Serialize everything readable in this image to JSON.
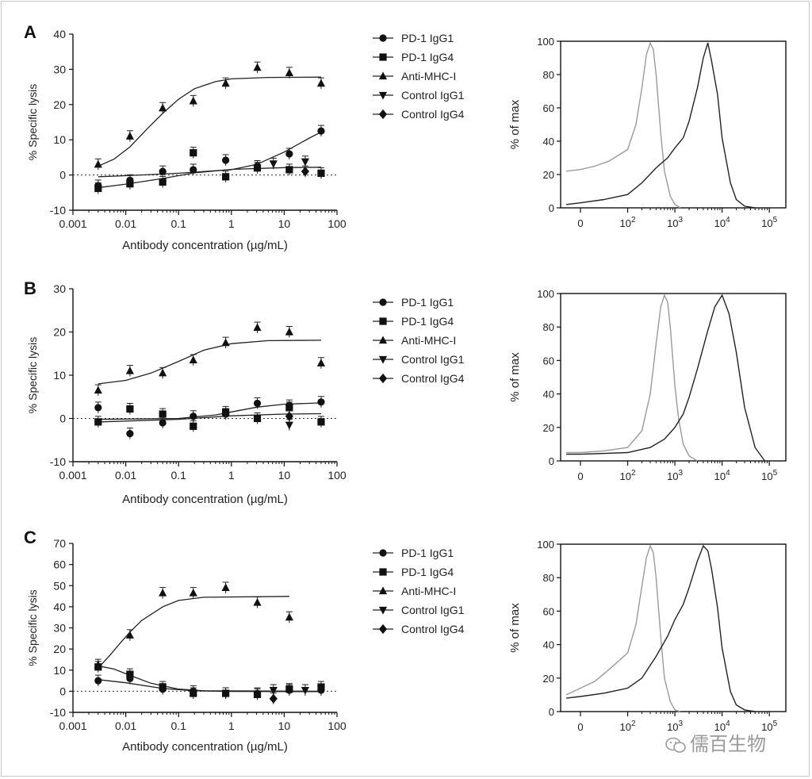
{
  "watermark": "儒百生物",
  "legend_items": [
    "PD-1 IgG1",
    "PD-1 IgG4",
    "Anti-MHC-I",
    "Control IgG1",
    "Control IgG4"
  ],
  "chart_data": [
    {
      "panel": "A",
      "type": "scatter",
      "xlabel": "Antibody concentration (µg/mL)",
      "ylabel": "% Specific lysis",
      "x_scale": "log",
      "xlim": [
        0.001,
        100
      ],
      "ylim": [
        -10,
        40
      ],
      "xticks": [
        "0.001",
        "0.01",
        "0.1",
        "1",
        "10",
        "100"
      ],
      "yticks": [
        "-10",
        "0",
        "10",
        "20",
        "30",
        "40"
      ],
      "grid": false,
      "zero_reference": "dotted line at y=0",
      "legend_position": "right",
      "series": [
        {
          "name": "PD-1 IgG1",
          "marker": "circle",
          "x": [
            0.003,
            0.012,
            0.05,
            0.19,
            0.78,
            3.1,
            12.5,
            50
          ],
          "y": [
            -3,
            -1.5,
            1,
            1.5,
            4.2,
            2.5,
            6,
            12.5
          ],
          "fit": [
            [
              0.003,
              -0.5
            ],
            [
              0.01,
              -0.2
            ],
            [
              0.1,
              0.5
            ],
            [
              1,
              1.5
            ],
            [
              3,
              3
            ],
            [
              10,
              6.5
            ],
            [
              30,
              10.5
            ],
            [
              50,
              12.2
            ]
          ]
        },
        {
          "name": "PD-1 IgG4",
          "marker": "square",
          "x": [
            0.003,
            0.012,
            0.05,
            0.19,
            0.78,
            3.1,
            12.5,
            50
          ],
          "y": [
            -3.8,
            -2.5,
            -2,
            6.3,
            -0.5,
            2,
            1.5,
            0.5
          ],
          "fit": [
            [
              0.003,
              -3.6
            ],
            [
              0.01,
              -2.6
            ],
            [
              0.05,
              -1
            ],
            [
              0.2,
              0.6
            ],
            [
              1,
              1.6
            ],
            [
              10,
              2.1
            ],
            [
              50,
              2.2
            ]
          ]
        },
        {
          "name": "Anti-MHC-I",
          "marker": "triangle-up",
          "x": [
            0.003,
            0.012,
            0.05,
            0.19,
            0.78,
            3.1,
            12.5,
            50
          ],
          "y": [
            3,
            11,
            19,
            21,
            26,
            30.5,
            29,
            26
          ],
          "fit": [
            [
              0.003,
              2.5
            ],
            [
              0.006,
              4.5
            ],
            [
              0.012,
              8
            ],
            [
              0.025,
              13
            ],
            [
              0.05,
              17.5
            ],
            [
              0.1,
              21.5
            ],
            [
              0.2,
              24.5
            ],
            [
              0.5,
              26.5
            ],
            [
              1,
              27.3
            ],
            [
              5,
              27.7
            ],
            [
              50,
              27.8
            ]
          ]
        },
        {
          "name": "Control IgG1",
          "marker": "triangle-down",
          "x": [
            6.25,
            25
          ],
          "y": [
            3.2,
            3.8
          ]
        },
        {
          "name": "Control IgG4",
          "marker": "diamond",
          "x": [
            25
          ],
          "y": [
            1
          ]
        }
      ]
    },
    {
      "panel": "B",
      "type": "scatter",
      "xlabel": "Antibody concentration (µg/mL)",
      "ylabel": "% Specific lysis",
      "x_scale": "log",
      "xlim": [
        0.001,
        100
      ],
      "ylim": [
        -10,
        30
      ],
      "xticks": [
        "0.001",
        "0.01",
        "0.1",
        "1",
        "10",
        "100"
      ],
      "yticks": [
        "-10",
        "0",
        "10",
        "20",
        "30"
      ],
      "grid": false,
      "zero_reference": "dotted line at y=0",
      "legend_position": "right",
      "series": [
        {
          "name": "PD-1 IgG1",
          "marker": "circle",
          "x": [
            0.003,
            0.012,
            0.05,
            0.19,
            0.78,
            3.1,
            12.5,
            50
          ],
          "y": [
            2.5,
            -3.5,
            -1,
            0.5,
            1,
            3.5,
            3,
            3.8
          ],
          "fit": [
            [
              0.003,
              -0.2
            ],
            [
              0.1,
              0
            ],
            [
              0.5,
              0.8
            ],
            [
              1,
              1.5
            ],
            [
              3,
              2.6
            ],
            [
              10,
              3.3
            ],
            [
              50,
              3.6
            ]
          ]
        },
        {
          "name": "PD-1 IgG4",
          "marker": "square",
          "x": [
            0.003,
            0.012,
            0.05,
            0.19,
            0.78,
            3.1,
            12.5,
            50
          ],
          "y": [
            -0.8,
            2.2,
            1,
            -1.8,
            1.5,
            0,
            2.5,
            -0.8
          ],
          "fit": [
            [
              0.003,
              -0.8
            ],
            [
              0.1,
              -0.2
            ],
            [
              1,
              0.6
            ],
            [
              10,
              1
            ],
            [
              50,
              1.1
            ]
          ]
        },
        {
          "name": "Anti-MHC-I",
          "marker": "triangle-up",
          "x": [
            0.003,
            0.012,
            0.05,
            0.19,
            0.78,
            3.1,
            12.5,
            50
          ],
          "y": [
            6.5,
            11,
            10.5,
            13.5,
            17.5,
            21,
            20,
            12.8
          ],
          "fit": [
            [
              0.003,
              8
            ],
            [
              0.01,
              8.8
            ],
            [
              0.03,
              10.5
            ],
            [
              0.1,
              13.2
            ],
            [
              0.3,
              15.8
            ],
            [
              1,
              17.3
            ],
            [
              5,
              18
            ],
            [
              50,
              18.1
            ]
          ]
        },
        {
          "name": "Control IgG1",
          "marker": "triangle-down",
          "x": [
            12.5
          ],
          "y": [
            -1.5
          ]
        },
        {
          "name": "Control IgG4",
          "marker": "diamond",
          "x": [
            12.5
          ],
          "y": [
            0.5
          ]
        }
      ]
    },
    {
      "panel": "C",
      "type": "scatter",
      "xlabel": "Antibody concentration (µg/mL)",
      "ylabel": "% Specific lysis",
      "x_scale": "log",
      "xlim": [
        0.001,
        100
      ],
      "ylim": [
        -10,
        70
      ],
      "xticks": [
        "0.001",
        "0.01",
        "0.1",
        "1",
        "10",
        "100"
      ],
      "yticks": [
        "-10",
        "0",
        "10",
        "20",
        "30",
        "40",
        "50",
        "60",
        "70"
      ],
      "grid": false,
      "zero_reference": "dotted line at y=0",
      "legend_position": "right",
      "series": [
        {
          "name": "PD-1 IgG1",
          "marker": "circle",
          "x": [
            0.003,
            0.012,
            0.05,
            0.19,
            0.78,
            3.1,
            12.5,
            50
          ],
          "y": [
            5,
            6,
            1,
            0,
            -1,
            -1,
            0.5,
            0.5
          ],
          "fit": [
            [
              0.003,
              5.5
            ],
            [
              0.01,
              4
            ],
            [
              0.05,
              1.3
            ],
            [
              0.2,
              0.2
            ],
            [
              1,
              -0.1
            ],
            [
              50,
              -0.2
            ]
          ]
        },
        {
          "name": "PD-1 IgG4",
          "marker": "square",
          "x": [
            0.003,
            0.012,
            0.05,
            0.19,
            0.78,
            3.1,
            12.5,
            50
          ],
          "y": [
            11.5,
            8,
            2,
            -1,
            -1,
            -1.5,
            1,
            2
          ],
          "fit": [
            [
              0.003,
              12
            ],
            [
              0.006,
              10.5
            ],
            [
              0.012,
              7.5
            ],
            [
              0.03,
              3.8
            ],
            [
              0.1,
              1
            ],
            [
              0.3,
              0.2
            ],
            [
              50,
              0
            ]
          ]
        },
        {
          "name": "Anti-MHC-I",
          "marker": "triangle-up",
          "x": [
            0.003,
            0.012,
            0.05,
            0.19,
            0.78,
            3.1,
            12.5
          ],
          "y": [
            12.5,
            26.5,
            46.5,
            46.5,
            49,
            42,
            35
          ],
          "fit": [
            [
              0.003,
              11
            ],
            [
              0.005,
              17
            ],
            [
              0.008,
              23
            ],
            [
              0.012,
              28
            ],
            [
              0.02,
              33.5
            ],
            [
              0.05,
              40
            ],
            [
              0.1,
              43
            ],
            [
              0.3,
              44.5
            ],
            [
              12.5,
              44.9
            ]
          ]
        },
        {
          "name": "Control IgG1",
          "marker": "triangle-down",
          "x": [
            6.25,
            25
          ],
          "y": [
            0.5,
            0.5
          ]
        },
        {
          "name": "Control IgG4",
          "marker": "diamond",
          "x": [
            6.25
          ],
          "y": [
            -3.5
          ]
        }
      ]
    },
    {
      "panel": "A-histogram",
      "type": "line",
      "ylabel": "% of max",
      "x_scale": "biexponential",
      "xticks": [
        "0",
        "10^2",
        "10^3",
        "10^4",
        "10^5"
      ],
      "yticks": [
        "0",
        "20",
        "40",
        "60",
        "80",
        "100"
      ],
      "ylim": [
        0,
        100
      ],
      "series": [
        {
          "color": "#9a9a9a",
          "x": [
            -30,
            0,
            30,
            60,
            100,
            150,
            200,
            250,
            300,
            350,
            400,
            500,
            600,
            800,
            1000,
            1300
          ],
          "y": [
            22,
            23,
            25,
            28,
            35,
            50,
            72,
            92,
            99,
            95,
            80,
            45,
            22,
            7,
            2,
            0
          ]
        },
        {
          "color": "#222222",
          "x": [
            -30,
            0,
            50,
            100,
            200,
            400,
            700,
            1000,
            1500,
            2000,
            3000,
            4000,
            5000,
            6000,
            8000,
            10000,
            15000,
            20000,
            30000,
            50000
          ],
          "y": [
            2,
            3,
            5,
            8,
            15,
            24,
            30,
            36,
            42,
            52,
            72,
            90,
            99,
            88,
            68,
            42,
            15,
            5,
            1,
            0
          ]
        }
      ]
    },
    {
      "panel": "B-histogram",
      "type": "line",
      "ylabel": "% of max",
      "x_scale": "biexponential",
      "xticks": [
        "0",
        "10^2",
        "10^3",
        "10^4",
        "10^5"
      ],
      "yticks": [
        "0",
        "20",
        "40",
        "60",
        "80",
        "100"
      ],
      "ylim": [
        0,
        100
      ],
      "series": [
        {
          "color": "#9a9a9a",
          "x": [
            -30,
            0,
            50,
            100,
            200,
            300,
            400,
            500,
            600,
            700,
            800,
            1000,
            1200,
            1500,
            2000,
            3000
          ],
          "y": [
            5,
            5,
            6,
            8,
            18,
            40,
            70,
            92,
            99,
            95,
            80,
            45,
            25,
            10,
            3,
            0
          ]
        },
        {
          "color": "#222222",
          "x": [
            -30,
            0,
            100,
            300,
            600,
            1000,
            1500,
            2000,
            3000,
            5000,
            7000,
            10000,
            14000,
            20000,
            30000,
            50000,
            80000
          ],
          "y": [
            4,
            4,
            5,
            8,
            13,
            20,
            28,
            38,
            55,
            78,
            92,
            99,
            88,
            65,
            32,
            8,
            0
          ]
        }
      ]
    },
    {
      "panel": "C-histogram",
      "type": "line",
      "ylabel": "% of max",
      "x_scale": "biexponential",
      "xticks": [
        "0",
        "10^2",
        "10^3",
        "10^4",
        "10^5"
      ],
      "yticks": [
        "0",
        "20",
        "40",
        "60",
        "80",
        "100"
      ],
      "ylim": [
        0,
        100
      ],
      "series": [
        {
          "color": "#9a9a9a",
          "x": [
            -30,
            0,
            30,
            60,
            100,
            150,
            200,
            250,
            300,
            350,
            400,
            500,
            600,
            800,
            1000,
            1300
          ],
          "y": [
            10,
            14,
            18,
            25,
            35,
            52,
            75,
            92,
            99,
            95,
            80,
            45,
            20,
            6,
            1,
            0
          ]
        },
        {
          "color": "#222222",
          "x": [
            -30,
            0,
            50,
            100,
            200,
            400,
            700,
            1000,
            1500,
            2000,
            3000,
            4000,
            5000,
            6000,
            8000,
            10000,
            15000,
            20000,
            30000,
            50000
          ],
          "y": [
            8,
            9,
            11,
            14,
            20,
            33,
            45,
            55,
            64,
            74,
            90,
            99,
            96,
            85,
            62,
            38,
            12,
            4,
            1,
            0
          ]
        }
      ]
    }
  ]
}
